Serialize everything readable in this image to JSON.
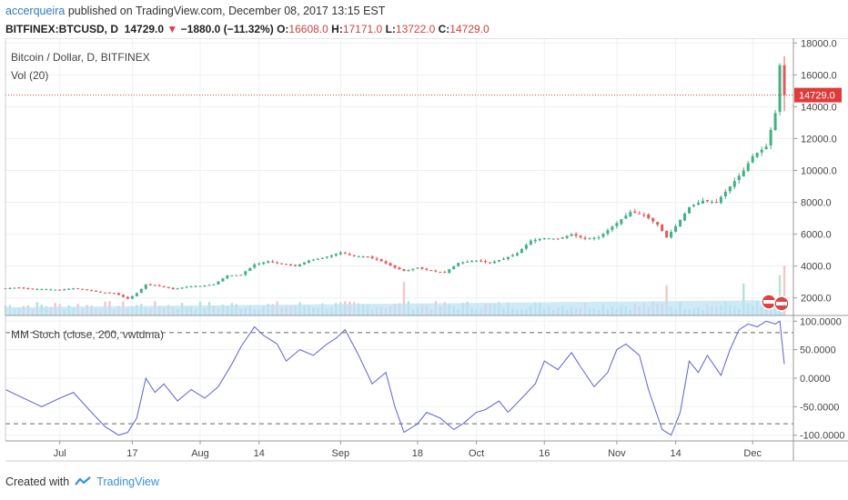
{
  "header": {
    "user": "accerqueira",
    "published": "published on TradingView.com, December 08, 2017 13:15 EST",
    "symbol": "BITFINEX:BTCUSD, D",
    "last": "14729.0",
    "change": "−1880.0 (−11.32%)",
    "o_label": "O:",
    "o": "16608.0",
    "h_label": "H:",
    "h": "17171.0",
    "l_label": "L:",
    "l": "13722.0",
    "c_label": "C:",
    "c": "14729.0"
  },
  "legend": {
    "title": "Bitcoin / Dollar, D, BITFINEX",
    "volume": "Vol (20)",
    "indicator": "MM Stoch (close, 200, vwtdma)"
  },
  "footer": {
    "created_with": "Created with",
    "brand": "TradingView"
  },
  "colors": {
    "up": "#3fb184",
    "down": "#e05a5a",
    "stoch": "#6b6bd6",
    "volume_ma": "#bde1f5",
    "price_line": "#e03b3b"
  },
  "chart_data": {
    "type": "candlestick",
    "series_name": "BITFINEX:BTCUSD",
    "price_axis": {
      "ticks": [
        2000,
        4000,
        6000,
        8000,
        10000,
        12000,
        14000,
        16000,
        18000
      ],
      "labels": [
        "2000.0",
        "4000.0",
        "6000.0",
        "8000.0",
        "10000.0",
        "12000.0",
        "14000.0",
        "16000.0",
        "18000.0"
      ],
      "range": [
        900,
        18300
      ]
    },
    "last_price_label": "14729.0",
    "x_axis": {
      "labels": [
        "Jul",
        "17",
        "Aug",
        "14",
        "Sep",
        "18",
        "Oct",
        "16",
        "Nov",
        "14",
        "Dec"
      ],
      "label_dates": [
        "2017-07-01",
        "2017-07-17",
        "2017-08-01",
        "2017-08-14",
        "2017-09-01",
        "2017-09-18",
        "2017-10-01",
        "2017-10-16",
        "2017-11-01",
        "2017-11-14",
        "2017-12-01"
      ],
      "start": "2017-06-19",
      "end": "2017-12-10"
    },
    "closes": [
      [
        "2017-06-19",
        2600
      ],
      [
        "2017-06-22",
        2650
      ],
      [
        "2017-06-25",
        2550
      ],
      [
        "2017-06-28",
        2550
      ],
      [
        "2017-07-01",
        2500
      ],
      [
        "2017-07-04",
        2600
      ],
      [
        "2017-07-07",
        2500
      ],
      [
        "2017-07-10",
        2350
      ],
      [
        "2017-07-13",
        2300
      ],
      [
        "2017-07-16",
        1950
      ],
      [
        "2017-07-18",
        2300
      ],
      [
        "2017-07-20",
        2850
      ],
      [
        "2017-07-23",
        2750
      ],
      [
        "2017-07-26",
        2550
      ],
      [
        "2017-07-29",
        2700
      ],
      [
        "2017-08-01",
        2750
      ],
      [
        "2017-08-04",
        2850
      ],
      [
        "2017-08-07",
        3400
      ],
      [
        "2017-08-10",
        3450
      ],
      [
        "2017-08-13",
        4100
      ],
      [
        "2017-08-16",
        4300
      ],
      [
        "2017-08-19",
        4150
      ],
      [
        "2017-08-22",
        4000
      ],
      [
        "2017-08-25",
        4350
      ],
      [
        "2017-08-28",
        4500
      ],
      [
        "2017-09-01",
        4850
      ],
      [
        "2017-09-04",
        4600
      ],
      [
        "2017-09-07",
        4600
      ],
      [
        "2017-09-10",
        4300
      ],
      [
        "2017-09-13",
        3900
      ],
      [
        "2017-09-15",
        3700
      ],
      [
        "2017-09-18",
        3900
      ],
      [
        "2017-09-21",
        3700
      ],
      [
        "2017-09-24",
        3600
      ],
      [
        "2017-09-27",
        4200
      ],
      [
        "2017-10-01",
        4350
      ],
      [
        "2017-10-04",
        4200
      ],
      [
        "2017-10-07",
        4450
      ],
      [
        "2017-10-10",
        4800
      ],
      [
        "2017-10-13",
        5600
      ],
      [
        "2017-10-16",
        5750
      ],
      [
        "2017-10-19",
        5700
      ],
      [
        "2017-10-22",
        6000
      ],
      [
        "2017-10-25",
        5700
      ],
      [
        "2017-10-28",
        5800
      ],
      [
        "2017-11-01",
        6700
      ],
      [
        "2017-11-04",
        7400
      ],
      [
        "2017-11-07",
        7200
      ],
      [
        "2017-11-10",
        6600
      ],
      [
        "2017-11-12",
        5800
      ],
      [
        "2017-11-14",
        6500
      ],
      [
        "2017-11-17",
        7700
      ],
      [
        "2017-11-20",
        8100
      ],
      [
        "2017-11-23",
        8000
      ],
      [
        "2017-11-26",
        9000
      ],
      [
        "2017-11-29",
        10000
      ],
      [
        "2017-12-01",
        10900
      ],
      [
        "2017-12-04",
        11500
      ],
      [
        "2017-12-06",
        13600
      ],
      [
        "2017-12-07",
        16600
      ],
      [
        "2017-12-08",
        14729
      ]
    ],
    "volume_spikes": [
      [
        "2017-09-15",
        3
      ],
      [
        "2017-11-12",
        2.6
      ],
      [
        "2017-11-29",
        2.8
      ],
      [
        "2017-12-07",
        3.8
      ],
      [
        "2017-12-08",
        5
      ]
    ],
    "oscillator": {
      "name": "MM Stoch (close, 200, vwtdma)",
      "ticks": [
        -100,
        -50,
        0,
        50,
        100
      ],
      "labels": [
        "-100.0000",
        "-50.0000",
        "0.0000",
        "50.0000",
        "100.0000"
      ],
      "range": [
        -110,
        110
      ],
      "levels": [
        80,
        -80
      ],
      "values": [
        [
          "2017-06-19",
          -20
        ],
        [
          "2017-06-23",
          -35
        ],
        [
          "2017-06-27",
          -50
        ],
        [
          "2017-07-01",
          -35
        ],
        [
          "2017-07-04",
          -25
        ],
        [
          "2017-07-08",
          -60
        ],
        [
          "2017-07-11",
          -85
        ],
        [
          "2017-07-14",
          -100
        ],
        [
          "2017-07-16",
          -95
        ],
        [
          "2017-07-18",
          -70
        ],
        [
          "2017-07-20",
          0
        ],
        [
          "2017-07-22",
          -25
        ],
        [
          "2017-07-24",
          -10
        ],
        [
          "2017-07-27",
          -40
        ],
        [
          "2017-07-30",
          -20
        ],
        [
          "2017-08-02",
          -35
        ],
        [
          "2017-08-05",
          -15
        ],
        [
          "2017-08-08",
          25
        ],
        [
          "2017-08-10",
          55
        ],
        [
          "2017-08-13",
          90
        ],
        [
          "2017-08-15",
          75
        ],
        [
          "2017-08-18",
          60
        ],
        [
          "2017-08-20",
          30
        ],
        [
          "2017-08-23",
          50
        ],
        [
          "2017-08-26",
          40
        ],
        [
          "2017-08-29",
          60
        ],
        [
          "2017-08-31",
          70
        ],
        [
          "2017-09-02",
          85
        ],
        [
          "2017-09-05",
          40
        ],
        [
          "2017-09-08",
          -10
        ],
        [
          "2017-09-11",
          10
        ],
        [
          "2017-09-13",
          -50
        ],
        [
          "2017-09-15",
          -95
        ],
        [
          "2017-09-18",
          -80
        ],
        [
          "2017-09-20",
          -60
        ],
        [
          "2017-09-23",
          -70
        ],
        [
          "2017-09-26",
          -90
        ],
        [
          "2017-09-28",
          -80
        ],
        [
          "2017-10-01",
          -60
        ],
        [
          "2017-10-03",
          -55
        ],
        [
          "2017-10-06",
          -40
        ],
        [
          "2017-10-08",
          -60
        ],
        [
          "2017-10-11",
          -35
        ],
        [
          "2017-10-14",
          -10
        ],
        [
          "2017-10-16",
          30
        ],
        [
          "2017-10-19",
          15
        ],
        [
          "2017-10-22",
          45
        ],
        [
          "2017-10-24",
          20
        ],
        [
          "2017-10-27",
          -15
        ],
        [
          "2017-10-30",
          10
        ],
        [
          "2017-11-01",
          50
        ],
        [
          "2017-11-03",
          60
        ],
        [
          "2017-11-06",
          40
        ],
        [
          "2017-11-08",
          -20
        ],
        [
          "2017-11-11",
          -90
        ],
        [
          "2017-11-13",
          -100
        ],
        [
          "2017-11-15",
          -60
        ],
        [
          "2017-11-17",
          30
        ],
        [
          "2017-11-19",
          10
        ],
        [
          "2017-11-21",
          40
        ],
        [
          "2017-11-24",
          5
        ],
        [
          "2017-11-26",
          50
        ],
        [
          "2017-11-28",
          85
        ],
        [
          "2017-11-30",
          95
        ],
        [
          "2017-12-02",
          90
        ],
        [
          "2017-12-04",
          100
        ],
        [
          "2017-12-06",
          95
        ],
        [
          "2017-12-07",
          100
        ],
        [
          "2017-12-08",
          25
        ]
      ]
    }
  }
}
